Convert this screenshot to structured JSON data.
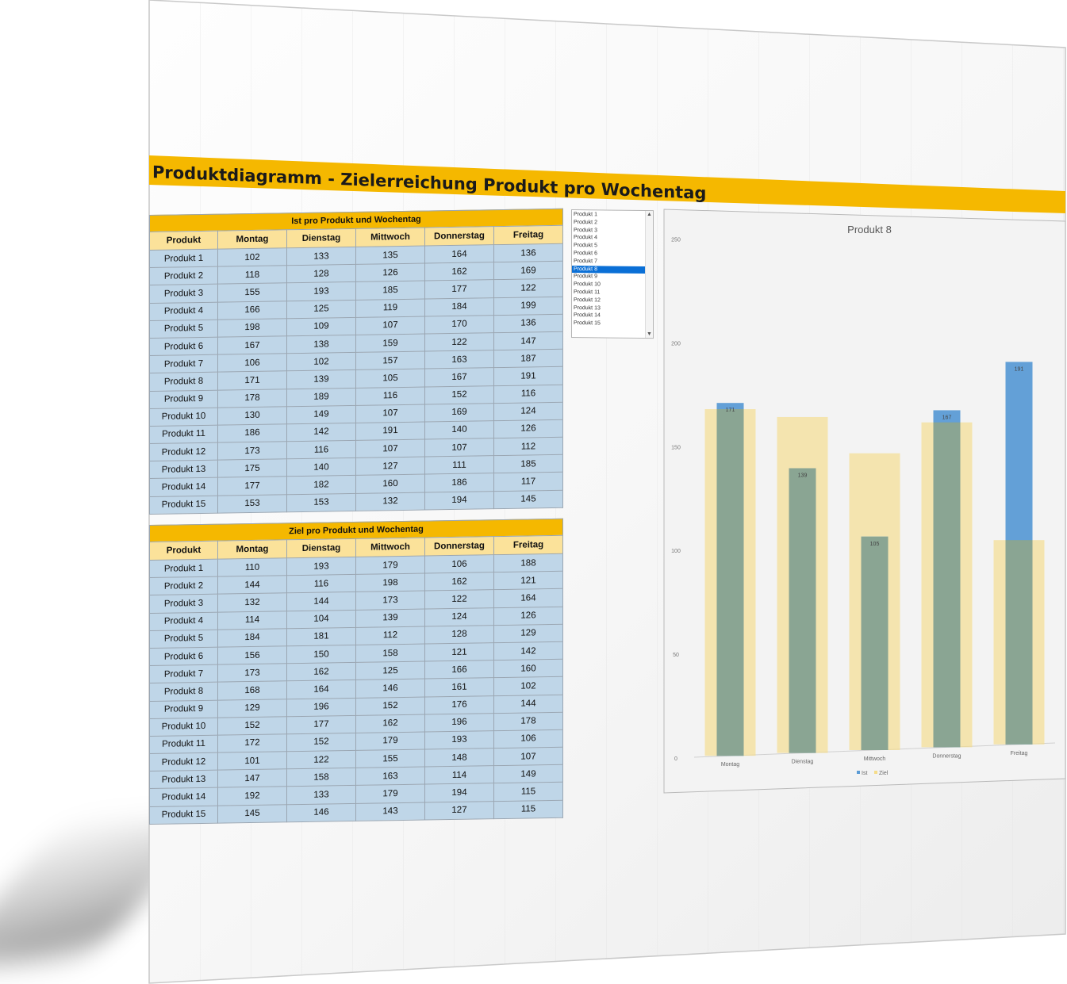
{
  "title": "Produktdiagramm - Zielerreichung Produkt pro Wochentag",
  "headers": [
    "Produkt",
    "Montag",
    "Dienstag",
    "Mittwoch",
    "Donnerstag",
    "Freitag"
  ],
  "ist_table": {
    "caption": "Ist pro Produkt und Wochentag",
    "rows": [
      {
        "produkt": "Produkt 1",
        "values": [
          102,
          133,
          135,
          164,
          136
        ]
      },
      {
        "produkt": "Produkt 2",
        "values": [
          118,
          128,
          126,
          162,
          169
        ]
      },
      {
        "produkt": "Produkt 3",
        "values": [
          155,
          193,
          185,
          177,
          122
        ]
      },
      {
        "produkt": "Produkt 4",
        "values": [
          166,
          125,
          119,
          184,
          199
        ]
      },
      {
        "produkt": "Produkt 5",
        "values": [
          198,
          109,
          107,
          170,
          136
        ]
      },
      {
        "produkt": "Produkt 6",
        "values": [
          167,
          138,
          159,
          122,
          147
        ]
      },
      {
        "produkt": "Produkt 7",
        "values": [
          106,
          102,
          157,
          163,
          187
        ]
      },
      {
        "produkt": "Produkt 8",
        "values": [
          171,
          139,
          105,
          167,
          191
        ]
      },
      {
        "produkt": "Produkt 9",
        "values": [
          178,
          189,
          116,
          152,
          116
        ]
      },
      {
        "produkt": "Produkt 10",
        "values": [
          130,
          149,
          107,
          169,
          124
        ]
      },
      {
        "produkt": "Produkt 11",
        "values": [
          186,
          142,
          191,
          140,
          126
        ]
      },
      {
        "produkt": "Produkt 12",
        "values": [
          173,
          116,
          107,
          107,
          112
        ]
      },
      {
        "produkt": "Produkt 13",
        "values": [
          175,
          140,
          127,
          111,
          185
        ]
      },
      {
        "produkt": "Produkt 14",
        "values": [
          177,
          182,
          160,
          186,
          117
        ]
      },
      {
        "produkt": "Produkt 15",
        "values": [
          153,
          153,
          132,
          194,
          145
        ]
      }
    ]
  },
  "ziel_table": {
    "caption": "Ziel pro Produkt und Wochentag",
    "rows": [
      {
        "produkt": "Produkt 1",
        "values": [
          110,
          193,
          179,
          106,
          188
        ]
      },
      {
        "produkt": "Produkt 2",
        "values": [
          144,
          116,
          198,
          162,
          121
        ]
      },
      {
        "produkt": "Produkt 3",
        "values": [
          132,
          144,
          173,
          122,
          164
        ]
      },
      {
        "produkt": "Produkt 4",
        "values": [
          114,
          104,
          139,
          124,
          126
        ]
      },
      {
        "produkt": "Produkt 5",
        "values": [
          184,
          181,
          112,
          128,
          129
        ]
      },
      {
        "produkt": "Produkt 6",
        "values": [
          156,
          150,
          158,
          121,
          142
        ]
      },
      {
        "produkt": "Produkt 7",
        "values": [
          173,
          162,
          125,
          166,
          160
        ]
      },
      {
        "produkt": "Produkt 8",
        "values": [
          168,
          164,
          146,
          161,
          102
        ]
      },
      {
        "produkt": "Produkt 9",
        "values": [
          129,
          196,
          152,
          176,
          144
        ]
      },
      {
        "produkt": "Produkt 10",
        "values": [
          152,
          177,
          162,
          196,
          178
        ]
      },
      {
        "produkt": "Produkt 11",
        "values": [
          172,
          152,
          179,
          193,
          106
        ]
      },
      {
        "produkt": "Produkt 12",
        "values": [
          101,
          122,
          155,
          148,
          107
        ]
      },
      {
        "produkt": "Produkt 13",
        "values": [
          147,
          158,
          163,
          114,
          149
        ]
      },
      {
        "produkt": "Produkt 14",
        "values": [
          192,
          133,
          179,
          194,
          115
        ]
      },
      {
        "produkt": "Produkt 15",
        "values": [
          145,
          146,
          143,
          127,
          115
        ]
      }
    ]
  },
  "listbox": {
    "items": [
      "Produkt 1",
      "Produkt 2",
      "Produkt 3",
      "Produkt 4",
      "Produkt 5",
      "Produkt 6",
      "Produkt 7",
      "Produkt 8",
      "Produkt 9",
      "Produkt 10",
      "Produkt 11",
      "Produkt 12",
      "Produkt 13",
      "Produkt 14",
      "Produkt 15"
    ],
    "selected": "Produkt 8"
  },
  "colors": {
    "accent": "#f5b800",
    "header": "#fbe29a",
    "cell": "#bfd6e8",
    "ist": "#5b9bd5",
    "ziel": "#f5dc8a"
  },
  "chart_data": {
    "type": "bar",
    "title": "Produkt 8",
    "categories": [
      "Montag",
      "Dienstag",
      "Mittwoch",
      "Donnerstag",
      "Freitag"
    ],
    "series": [
      {
        "name": "Ist",
        "values": [
          171,
          139,
          105,
          167,
          191
        ],
        "color": "#5b9bd5"
      },
      {
        "name": "Ziel",
        "values": [
          168,
          164,
          146,
          161,
          102
        ],
        "color": "#f5dc8a"
      }
    ],
    "data_labels": [
      "171",
      "139",
      "105",
      "167",
      "191"
    ],
    "yticks": [
      0,
      50,
      100,
      150,
      200,
      250
    ],
    "ylim": [
      0,
      250
    ],
    "legend_position": "bottom",
    "grid": false
  }
}
